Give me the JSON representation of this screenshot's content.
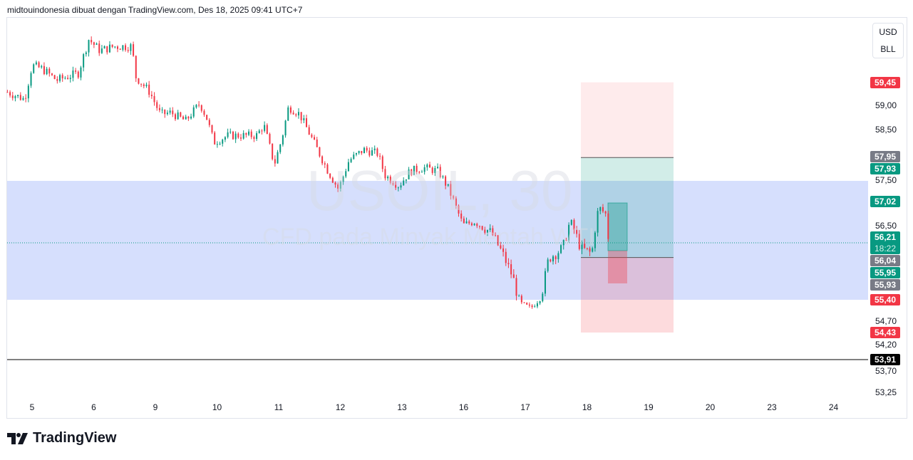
{
  "header": {
    "text": "midtouindonesia dibuat dengan TradingView.com, Des 18, 2025 09:41 UTC+7"
  },
  "watermark": {
    "symbol": "USOIL, 30",
    "description": "CFD pada Minyak Mentah WTI"
  },
  "currency_menu": {
    "items": [
      "USD",
      "BLL"
    ]
  },
  "logo": {
    "text": "TradingView"
  },
  "colors": {
    "up": "#089981",
    "down": "#f23645",
    "zone": "#d6dffd",
    "gray": "#787b86"
  },
  "chart_data": {
    "type": "candlestick",
    "symbol": "USOIL",
    "timeframe": "30",
    "y_ticks": [
      "59,00",
      "58,50",
      "57,50",
      "56,50",
      "54,70",
      "54,20",
      "53,70",
      "53,25"
    ],
    "y_tick_values": [
      59.0,
      58.5,
      57.5,
      56.5,
      54.7,
      54.2,
      53.7,
      53.25
    ],
    "x_ticks": [
      "5",
      "6",
      "9",
      "10",
      "11",
      "12",
      "13",
      "16",
      "17",
      "18",
      "19",
      "20",
      "23",
      "24"
    ],
    "price_path": [
      [
        -0.4,
        59.26
      ],
      [
        -0.12,
        59.12
      ],
      [
        0,
        59.78
      ],
      [
        0.17,
        59.71
      ],
      [
        0.4,
        59.49
      ],
      [
        0.75,
        59.63
      ],
      [
        0.92,
        60.29
      ],
      [
        1.1,
        60.07
      ],
      [
        1.33,
        60.15
      ],
      [
        1.62,
        60.15
      ],
      [
        1.68,
        59.56
      ],
      [
        1.91,
        59.26
      ],
      [
        2.08,
        58.82
      ],
      [
        2.25,
        58.85
      ],
      [
        2.49,
        58.68
      ],
      [
        2.72,
        59.04
      ],
      [
        2.83,
        58.75
      ],
      [
        2.95,
        58.24
      ],
      [
        3.18,
        58.38
      ],
      [
        3.64,
        58.38
      ],
      [
        3.76,
        58.6
      ],
      [
        3.93,
        57.79
      ],
      [
        4.05,
        58.31
      ],
      [
        4.16,
        58.97
      ],
      [
        4.34,
        58.82
      ],
      [
        4.57,
        58.24
      ],
      [
        4.8,
        57.65
      ],
      [
        4.97,
        57.28
      ],
      [
        5.14,
        57.87
      ],
      [
        5.38,
        58.09
      ],
      [
        5.61,
        58.01
      ],
      [
        5.72,
        57.57
      ],
      [
        5.95,
        57.35
      ],
      [
        6.13,
        57.65
      ],
      [
        6.36,
        57.72
      ],
      [
        6.59,
        57.65
      ],
      [
        6.76,
        57.28
      ],
      [
        6.99,
        56.54
      ],
      [
        7.17,
        56.62
      ],
      [
        7.46,
        56.4
      ],
      [
        7.63,
        56.1
      ],
      [
        7.8,
        55.74
      ],
      [
        7.92,
        55.29
      ],
      [
        8.09,
        55.15
      ],
      [
        8.27,
        55.51
      ],
      [
        8.38,
        56.03
      ],
      [
        8.61,
        56.18
      ],
      [
        8.73,
        56.62
      ],
      [
        8.9,
        56.18
      ],
      [
        9.08,
        56.1
      ],
      [
        9.19,
        56.91
      ],
      [
        9.31,
        56.76
      ],
      [
        9.36,
        56.18
      ]
    ],
    "zone": {
      "top": 57.45,
      "bottom": 55.4
    },
    "horizontal_line": 53.91,
    "current_price": 56.21,
    "countdown": "18:22",
    "price_labels": [
      {
        "text": "59,45",
        "value": 59.45,
        "color": "#f23645"
      },
      {
        "text": "57,95",
        "value": 57.95,
        "color": "#787b86"
      },
      {
        "text": "57,93",
        "value": 57.93,
        "color": "#089981"
      },
      {
        "text": "57,02",
        "value": 57.02,
        "color": "#089981"
      },
      {
        "text": "56,04",
        "value": 56.04,
        "color": "#787b86"
      },
      {
        "text": "55,95",
        "value": 55.95,
        "color": "#089981"
      },
      {
        "text": "55,93",
        "value": 55.93,
        "color": "#787b86"
      },
      {
        "text": "55,40",
        "value": 55.4,
        "color": "#f23645"
      },
      {
        "text": "54,43",
        "value": 54.43,
        "color": "#f23645"
      },
      {
        "text": "53,91",
        "value": 53.91,
        "color": "#000000"
      }
    ],
    "position_tool": {
      "stop": 59.45,
      "target": 57.93,
      "entry": 56.04,
      "lower": 54.43
    },
    "small_position": {
      "top": 57.02,
      "entry": 55.95,
      "bottom": 55.4
    }
  }
}
